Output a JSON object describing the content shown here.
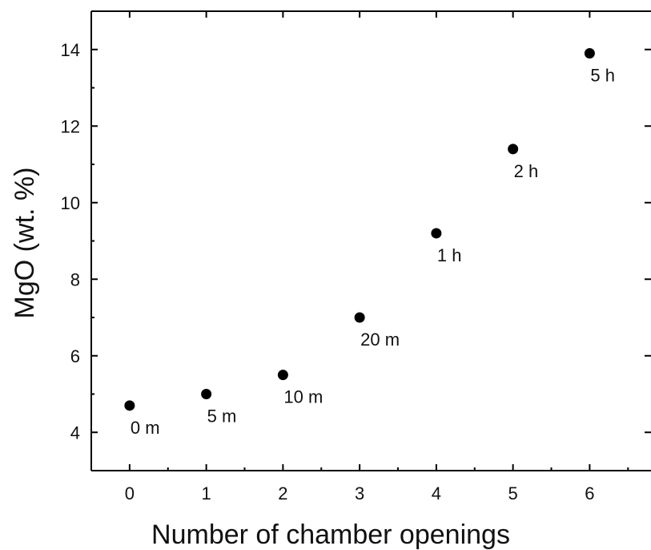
{
  "chart_data": {
    "type": "scatter",
    "title": "",
    "xlabel": "Number of chamber openings",
    "ylabel": "MgO (wt. %)",
    "xlim": [
      -0.5,
      6.8
    ],
    "ylim": [
      3,
      15
    ],
    "xticks": [
      0,
      1,
      2,
      3,
      4,
      5,
      6
    ],
    "yticks": [
      4,
      6,
      8,
      10,
      12,
      14
    ],
    "grid": false,
    "series": [
      {
        "marker_color": "#000000",
        "points": [
          {
            "x": 0,
            "y": 4.7,
            "label": "0 m"
          },
          {
            "x": 1,
            "y": 5.0,
            "label": "5 m"
          },
          {
            "x": 2,
            "y": 5.5,
            "label": "10 m"
          },
          {
            "x": 3,
            "y": 7.0,
            "label": "20 m"
          },
          {
            "x": 4,
            "y": 9.2,
            "label": "1 h"
          },
          {
            "x": 5,
            "y": 11.4,
            "label": "2 h"
          },
          {
            "x": 6,
            "y": 13.9,
            "label": "5 h"
          }
        ]
      }
    ]
  }
}
